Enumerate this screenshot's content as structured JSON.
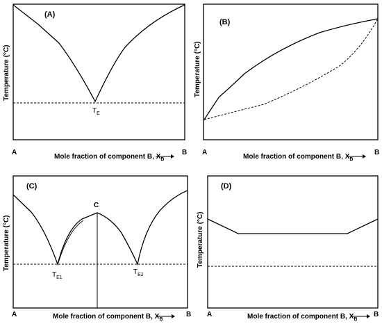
{
  "panels": [
    {
      "id": "A",
      "label": "(A)",
      "ylabel": "Temperature (°C)",
      "xlabel": "Mole fraction of component B, X",
      "xlabel_sub": "B",
      "left_end": "A",
      "right_end": "B",
      "markers": [
        {
          "main": "T",
          "sub": "E"
        }
      ]
    },
    {
      "id": "B",
      "label": "(B)",
      "ylabel": "Temperature (°C)",
      "xlabel": "Mole fraction of component B, X",
      "xlabel_sub": "B",
      "left_end": "A",
      "right_end": "B",
      "markers": []
    },
    {
      "id": "C",
      "label": "(C)",
      "ylabel": "Temperature (°C)",
      "xlabel": "Mole fraction of component B, X",
      "xlabel_sub": "B",
      "left_end": "A",
      "right_end": "B",
      "markers": [
        {
          "main": "C",
          "sub": ""
        },
        {
          "main": "T",
          "sub": "E1"
        },
        {
          "main": "T",
          "sub": "E2"
        }
      ]
    },
    {
      "id": "D",
      "label": "(D)",
      "ylabel": "Temperature (°C)",
      "xlabel": "Mole fraction of component B, X",
      "xlabel_sub": "B",
      "left_end": "A",
      "right_end": "B",
      "markers": []
    }
  ]
}
